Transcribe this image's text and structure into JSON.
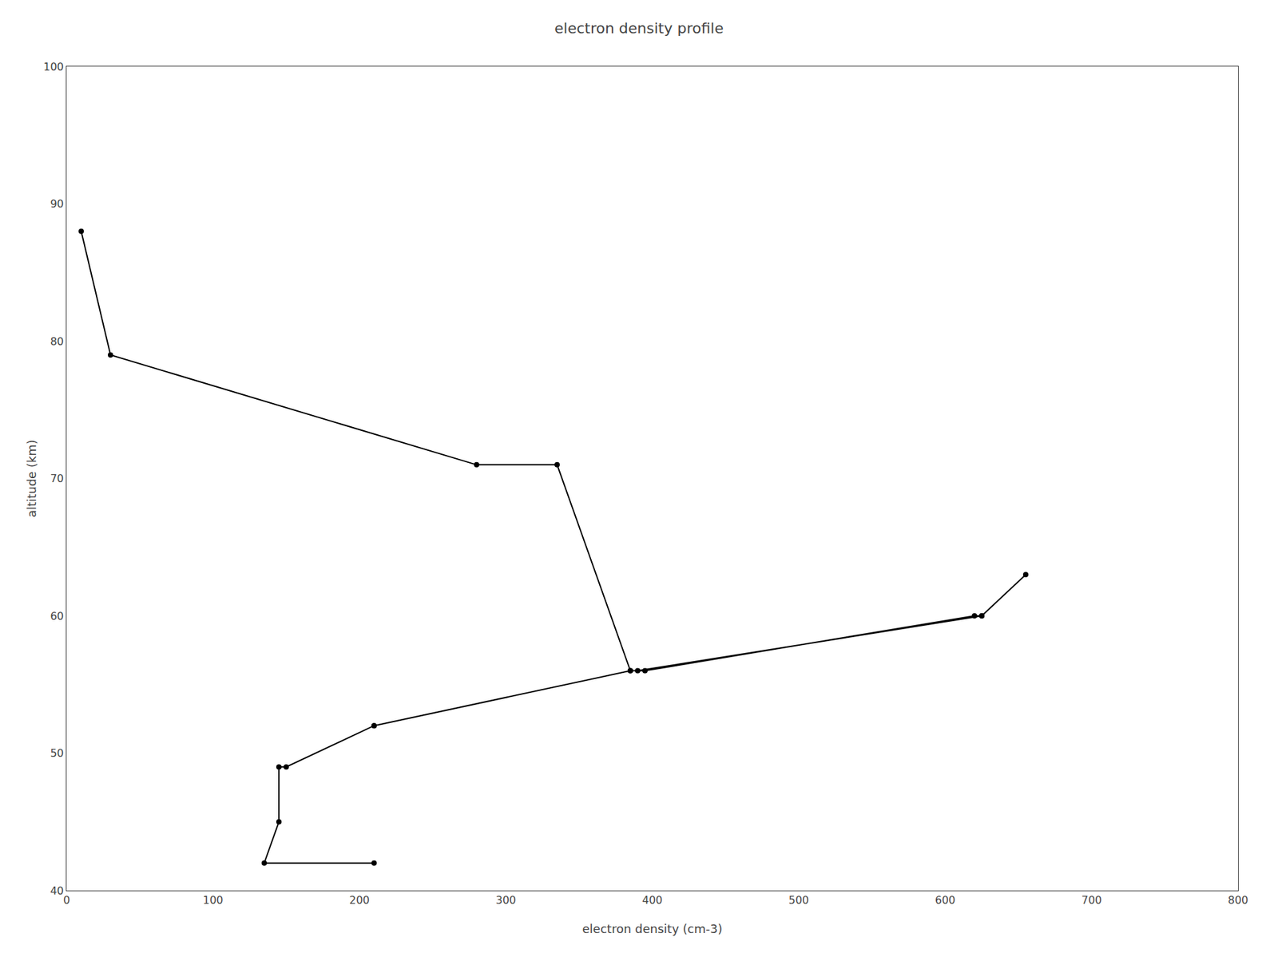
{
  "chart_data": {
    "type": "line",
    "title": "electron density profile",
    "xlabel": "electron density (cm-3)",
    "ylabel": "altitude (km)",
    "x": [
      10,
      30,
      280,
      335,
      385,
      395,
      620,
      625,
      655,
      625,
      390,
      385,
      210,
      210,
      150,
      145,
      145,
      135,
      210
    ],
    "values": [
      88,
      79,
      71,
      71,
      56,
      56,
      60,
      60,
      63,
      60,
      56,
      56,
      52,
      52,
      49,
      49,
      45,
      42,
      42
    ],
    "color": "#000000",
    "marker": "circle",
    "line_style": "solid",
    "xlim": [
      0,
      800
    ],
    "ylim": [
      40,
      100
    ],
    "xticks": [
      0,
      100,
      200,
      300,
      400,
      500,
      600,
      700,
      800
    ],
    "yticks": [
      40,
      50,
      60,
      70,
      80,
      90,
      100
    ],
    "grid": false
  }
}
